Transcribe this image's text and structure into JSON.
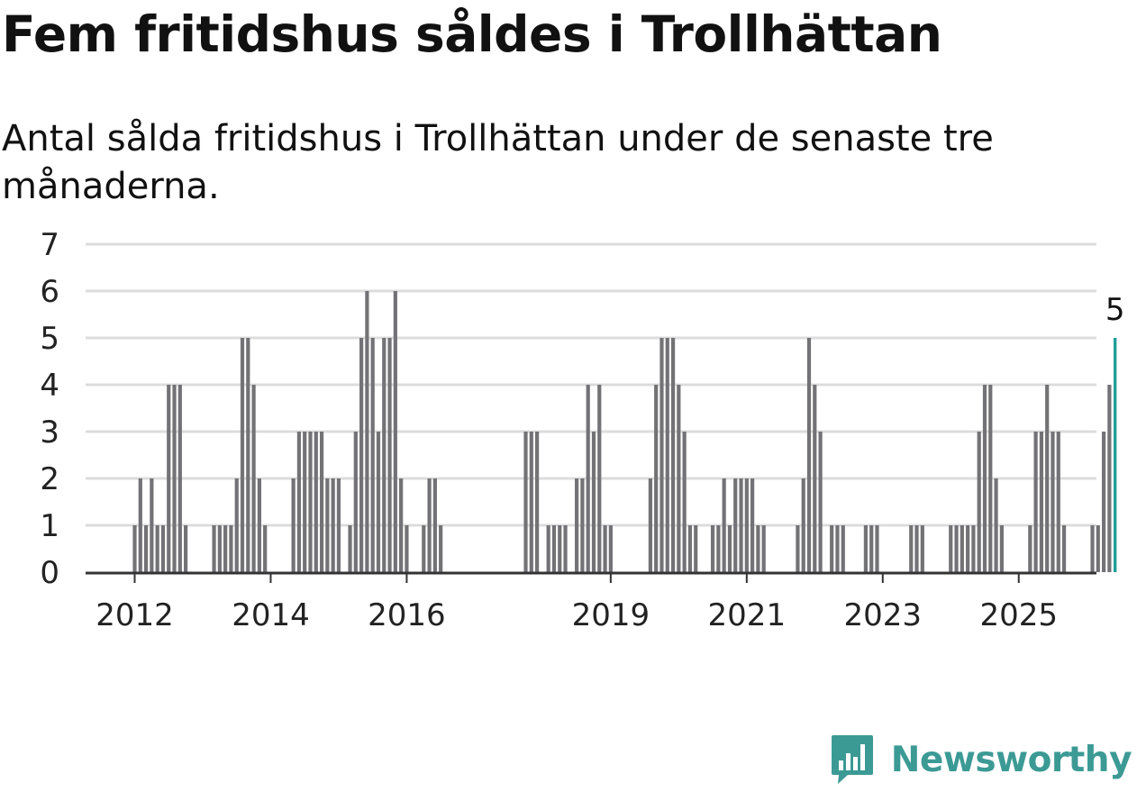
{
  "title": "Fem fritidshus såldes i Trollhättan",
  "subtitle": "Antal sålda fritidshus i Trollhättan under de senaste tre månaderna.",
  "logo": {
    "text": "Newsworthy",
    "icon": "newsworthy-logo-icon"
  },
  "colors": {
    "bar": "#737276",
    "highlight": "#1f9e98",
    "grid": "#dcdcdc",
    "axis": "#333333",
    "brand": "#3c9a95"
  },
  "chart_data": {
    "type": "bar",
    "x_unit": "month (rolling 3-month window)",
    "start_period": "2011-12",
    "values": [
      1,
      2,
      1,
      2,
      1,
      1,
      4,
      4,
      4,
      1,
      0,
      0,
      0,
      0,
      1,
      1,
      1,
      1,
      2,
      5,
      5,
      4,
      2,
      1,
      0,
      0,
      0,
      0,
      2,
      3,
      3,
      3,
      3,
      3,
      2,
      2,
      2,
      0,
      1,
      3,
      5,
      6,
      5,
      3,
      5,
      5,
      6,
      2,
      1,
      0,
      0,
      1,
      2,
      2,
      1,
      0,
      0,
      0,
      0,
      0,
      0,
      0,
      0,
      0,
      0,
      0,
      0,
      0,
      0,
      3,
      3,
      3,
      0,
      1,
      1,
      1,
      1,
      0,
      2,
      2,
      4,
      3,
      4,
      1,
      1,
      0,
      0,
      0,
      0,
      0,
      0,
      2,
      4,
      5,
      5,
      5,
      4,
      3,
      1,
      1,
      0,
      0,
      1,
      1,
      2,
      1,
      2,
      2,
      2,
      2,
      1,
      1,
      0,
      0,
      0,
      0,
      0,
      1,
      2,
      5,
      4,
      3,
      0,
      1,
      1,
      1,
      0,
      0,
      0,
      1,
      1,
      1,
      0,
      0,
      0,
      0,
      0,
      1,
      1,
      1,
      0,
      0,
      0,
      0,
      1,
      1,
      1,
      1,
      1,
      3,
      4,
      4,
      2,
      1,
      0,
      0,
      0,
      0,
      1,
      3,
      3,
      4,
      3,
      3,
      1,
      0,
      0,
      0,
      0,
      1,
      1,
      3,
      4,
      5
    ],
    "highlight_last": true,
    "last_value_label": "5",
    "ylim": [
      0,
      7
    ],
    "y_ticks": [
      "0",
      "1",
      "2",
      "3",
      "4",
      "5",
      "6",
      "7"
    ],
    "x_ticks": [
      {
        "label": "2012",
        "index": 0
      },
      {
        "label": "2014",
        "index": 24
      },
      {
        "label": "2016",
        "index": 48
      },
      {
        "label": "2019",
        "index": 84
      },
      {
        "label": "2021",
        "index": 108
      },
      {
        "label": "2023",
        "index": 132
      },
      {
        "label": "2025",
        "index": 156
      }
    ],
    "grid": true,
    "xlabel": "",
    "ylabel": ""
  }
}
